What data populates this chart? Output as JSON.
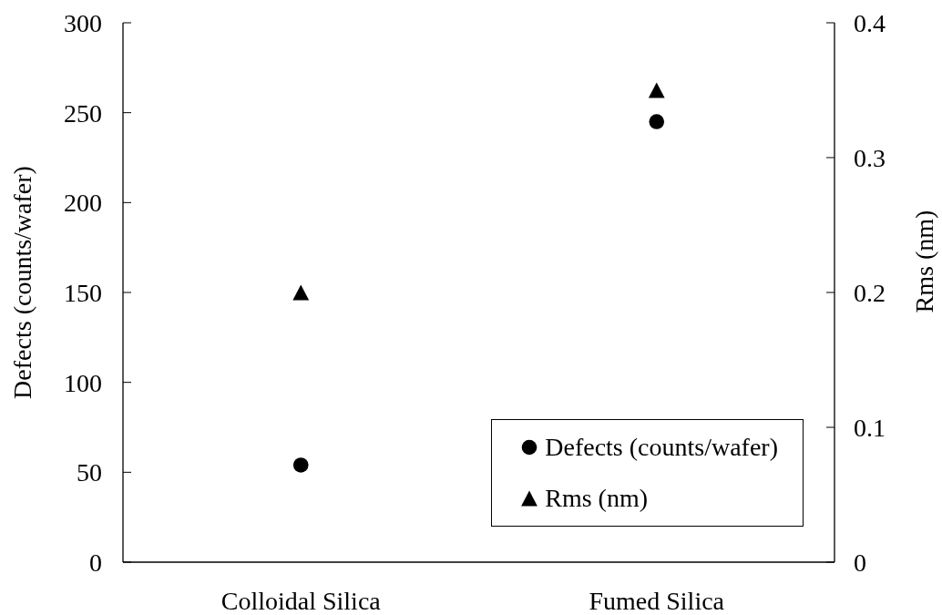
{
  "chart_data": {
    "type": "scatter",
    "categories": [
      "Colloidal Silica",
      "Fumed Silica"
    ],
    "series": [
      {
        "name": "Defects (counts/wafer)",
        "color": "#000000",
        "values": [
          54,
          245
        ],
        "marker": "circle"
      },
      {
        "name": "Rms (nm)",
        "color": "#000000",
        "values": [
          0.2,
          0.35
        ],
        "marker": "triangle",
        "axis": "y2"
      }
    ],
    "ylabel": "Defects (counts/wafer)",
    "y2label": "Rms (nm)",
    "ylim": [
      0,
      300
    ],
    "yticks": [
      0,
      50,
      100,
      150,
      200,
      250,
      300
    ],
    "y2lim": [
      0,
      0.4
    ],
    "y2ticks": [
      0,
      0.1,
      0.2,
      0.3,
      0.4
    ],
    "legend": "bottom right"
  }
}
